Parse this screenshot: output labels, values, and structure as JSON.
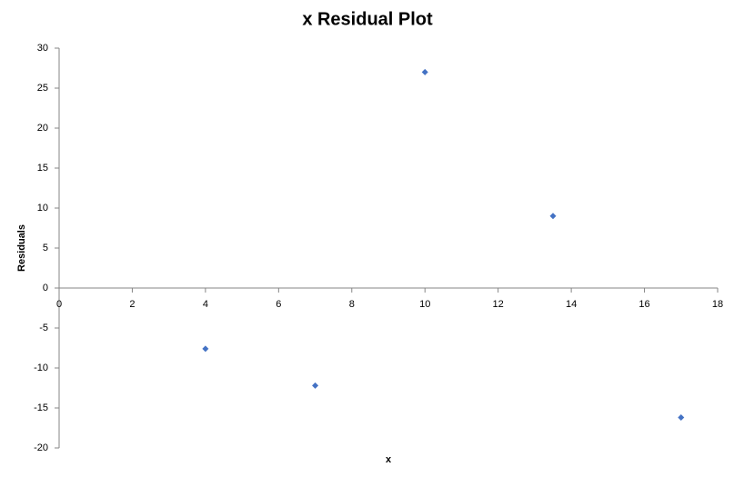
{
  "chart_data": {
    "type": "scatter",
    "title": "x  Residual Plot",
    "x_label": "x",
    "y_label": "Residuals",
    "x": [
      4,
      7,
      10,
      13.5,
      17
    ],
    "values": [
      -7.6,
      -12.2,
      27,
      9,
      -16.2
    ],
    "color": "#4472c4",
    "xlim": [
      0,
      18
    ],
    "xticks": [
      0,
      2,
      4,
      6,
      8,
      10,
      12,
      14,
      16,
      18
    ],
    "ylim": [
      -20,
      30
    ],
    "yticks": [
      -20,
      -15,
      -10,
      -5,
      0,
      5,
      10,
      15,
      20,
      25,
      30
    ]
  }
}
